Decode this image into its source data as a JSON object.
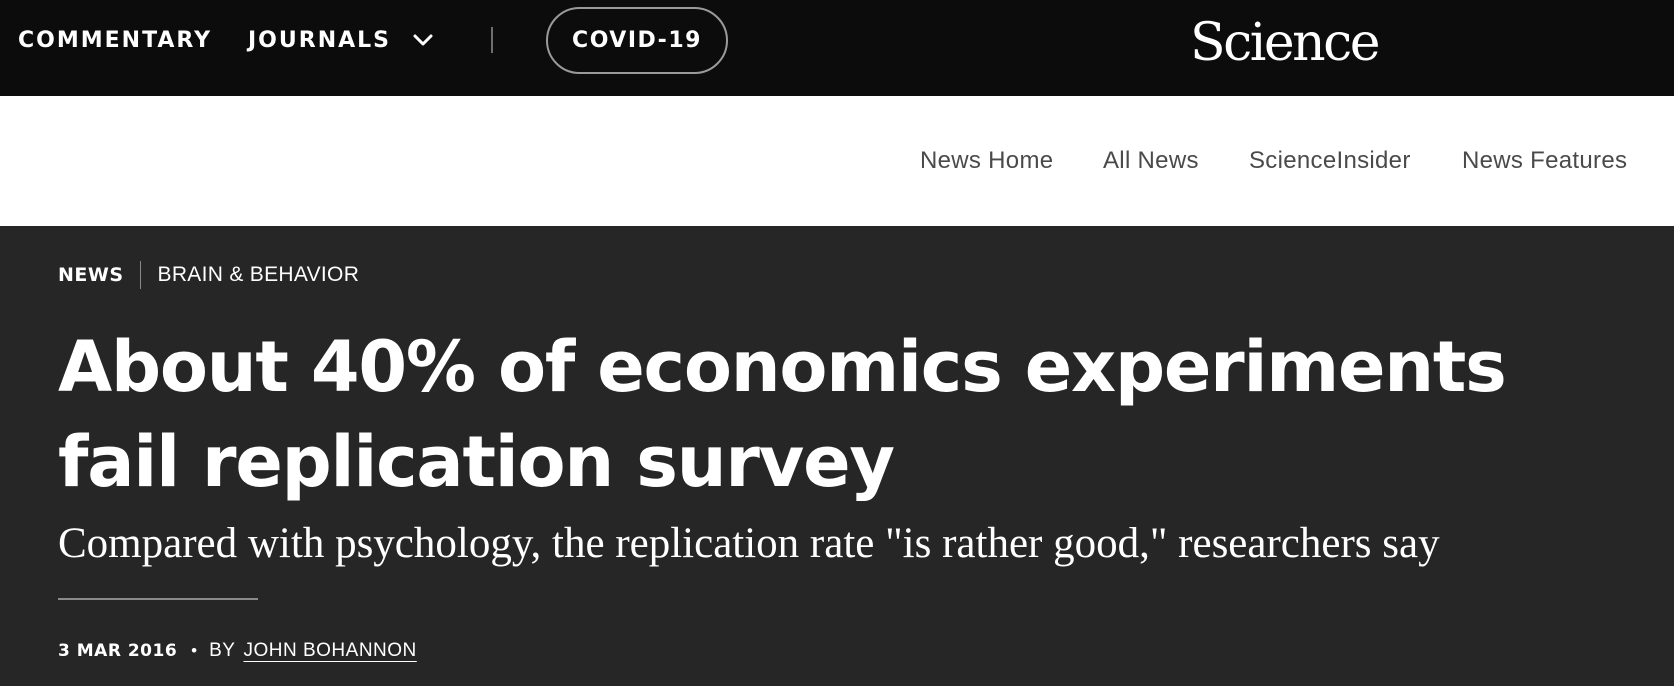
{
  "topbar": {
    "commentary_label": "COMMENTARY",
    "journals_label": "JOURNALS",
    "journals_icon": "chevron-down-icon",
    "covid_label": "COVID-19",
    "logo_text": "Science",
    "background": "#0c0c0c"
  },
  "subnav": {
    "items": [
      {
        "label": "News Home"
      },
      {
        "label": "All News"
      },
      {
        "label": "ScienceInsider"
      },
      {
        "label": "News Features"
      }
    ]
  },
  "article": {
    "section": "NEWS",
    "topic": "BRAIN & BEHAVIOR",
    "headline": "About 40% of economics experiments fail replication survey",
    "dek": "Compared with psychology, the replication rate \"is rather good,\" researchers say",
    "date": "3 MAR 2016",
    "by_label": "BY",
    "author": "JOHN BOHANNON",
    "background": "#262626"
  }
}
